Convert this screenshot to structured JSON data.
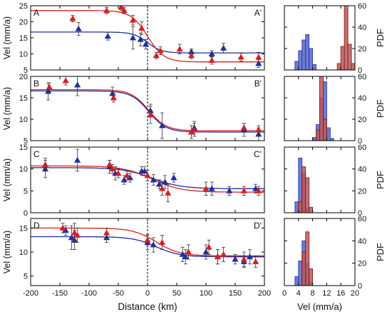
{
  "chart_data": [
    {
      "type": "scatter",
      "panel_label": "A",
      "panel_label_end": "A'",
      "ylabel": "Vel (mm/a)",
      "xlim": [
        -200,
        200
      ],
      "ylim": [
        5,
        25
      ],
      "yticks": [
        5,
        10,
        15,
        20,
        25
      ],
      "series": [
        {
          "color": "#1f2f9e",
          "marker": "triangle",
          "points": [
            [
              -118,
              17.8,
              2
            ],
            [
              -68,
              15.5,
              1.2
            ],
            [
              -25,
              15,
              3.5
            ],
            [
              -12,
              14.5,
              2
            ],
            [
              -3,
              13,
              1.5
            ],
            [
              75,
              10.7,
              0.8
            ],
            [
              110,
              10,
              1
            ],
            [
              130,
              11.8,
              1.5
            ],
            [
              190,
              7,
              1.2
            ]
          ],
          "curve": {
            "left": 16.8,
            "right": 10.3,
            "x0": 0,
            "w": 12
          }
        },
        {
          "color": "#d42020",
          "marker": "triangle",
          "points": [
            [
              -128,
              21,
              1
            ],
            [
              -70,
              23.5,
              1
            ],
            [
              -45,
              24.5,
              1
            ],
            [
              -40,
              23.5,
              1
            ],
            [
              -25,
              20.5,
              1.5
            ],
            [
              -10,
              18,
              2
            ],
            [
              15,
              9.5,
              1
            ],
            [
              22,
              11,
              1.2
            ],
            [
              55,
              11.5,
              1.5
            ],
            [
              75,
              9.5,
              1
            ],
            [
              110,
              8,
              1.2
            ],
            [
              160,
              9,
              1.2
            ],
            [
              190,
              9,
              1.5
            ]
          ],
          "curve": {
            "left": 23.5,
            "right": 7.5,
            "x0": 0,
            "w": 14
          }
        }
      ]
    },
    {
      "type": "scatter",
      "panel_label": "B",
      "panel_label_end": "B'",
      "ylabel": "Vel (mm/a)",
      "xlim": [
        -200,
        200
      ],
      "ylim": [
        5,
        20
      ],
      "yticks": [
        5,
        10,
        15,
        20
      ],
      "series": [
        {
          "color": "#1f2f9e",
          "marker": "triangle",
          "points": [
            [
              -170,
              16.5,
              2
            ],
            [
              -120,
              18,
              2.5
            ],
            [
              -60,
              16,
              1.5
            ],
            [
              5,
              12,
              1.5
            ],
            [
              25,
              8.5,
              3
            ],
            [
              80,
              8,
              1.5
            ],
            [
              165,
              7.5,
              1.5
            ],
            [
              190,
              6.5,
              1.5
            ]
          ],
          "curve": {
            "left": 16.6,
            "right": 7.0,
            "x0": 2,
            "w": 15
          }
        },
        {
          "color": "#d42020",
          "marker": "triangle",
          "points": [
            [
              -168,
              17.5,
              1
            ],
            [
              -140,
              19,
              1
            ],
            [
              -58,
              15,
              1
            ],
            [
              5,
              11,
              2
            ],
            [
              75,
              7,
              1.5
            ],
            [
              80,
              7.5,
              1.5
            ],
            [
              165,
              8,
              1
            ],
            [
              190,
              7.5,
              1
            ]
          ],
          "curve": {
            "left": 16.9,
            "right": 7.3,
            "x0": 2,
            "w": 15
          }
        }
      ]
    },
    {
      "type": "scatter",
      "panel_label": "C",
      "panel_label_end": "C'",
      "ylabel": "Vel (mm/a)",
      "xlim": [
        -200,
        200
      ],
      "ylim": [
        0,
        15
      ],
      "yticks": [
        0,
        5,
        10,
        15
      ],
      "series": [
        {
          "color": "#1f2f9e",
          "marker": "triangle",
          "points": [
            [
              -175,
              10,
              2
            ],
            [
              -120,
              12,
              2.5
            ],
            [
              -65,
              10.5,
              1.5
            ],
            [
              -55,
              9,
              1.5
            ],
            [
              -40,
              7.5,
              1
            ],
            [
              -30,
              8,
              1
            ],
            [
              -10,
              9.5,
              1
            ],
            [
              -5,
              9.5,
              1
            ],
            [
              10,
              7.5,
              1.2
            ],
            [
              20,
              6.5,
              1
            ],
            [
              30,
              7,
              1.5
            ],
            [
              45,
              8,
              1
            ],
            [
              110,
              5.5,
              1.5
            ],
            [
              140,
              5,
              1
            ],
            [
              185,
              5.5,
              1
            ]
          ],
          "curve": {
            "left": 10.3,
            "right": 5.5,
            "x0": 8,
            "w": 25
          }
        },
        {
          "color": "#d42020",
          "marker": "triangle",
          "points": [
            [
              -175,
              11,
              1.5
            ],
            [
              -65,
              11,
              1
            ],
            [
              -60,
              10,
              1
            ],
            [
              -50,
              9,
              1
            ],
            [
              -35,
              8.5,
              1
            ],
            [
              0,
              8.5,
              1.2
            ],
            [
              25,
              5.5,
              1.5
            ],
            [
              35,
              4.5,
              2
            ],
            [
              100,
              5.5,
              1.5
            ],
            [
              165,
              5,
              1
            ],
            [
              190,
              5,
              1
            ]
          ],
          "curve": {
            "left": 10.7,
            "right": 4.7,
            "x0": 8,
            "w": 25
          }
        }
      ]
    },
    {
      "type": "scatter",
      "panel_label": "D",
      "panel_label_end": "D'",
      "ylabel": "Vel (mm/a)",
      "xlim": [
        -200,
        200
      ],
      "ylim": [
        3,
        17
      ],
      "yticks": [
        5,
        10,
        15
      ],
      "series": [
        {
          "color": "#1f2f9e",
          "marker": "triangle",
          "points": [
            [
              -140,
              14.5,
              1
            ],
            [
              -130,
              13,
              2.5
            ],
            [
              -125,
              12.5,
              2
            ],
            [
              -70,
              13,
              1
            ],
            [
              0,
              12,
              1.5
            ],
            [
              10,
              11.5,
              1.5
            ],
            [
              60,
              9.5,
              1.5
            ],
            [
              65,
              9,
              1.5
            ],
            [
              100,
              10,
              1.5
            ],
            [
              120,
              9,
              1.5
            ],
            [
              150,
              8.5,
              1
            ],
            [
              165,
              8,
              1.2
            ],
            [
              175,
              9,
              1.5
            ]
          ],
          "curve": {
            "left": 13.2,
            "right": 9.0,
            "x0": 15,
            "w": 20
          }
        },
        {
          "color": "#d42020",
          "marker": "triangle",
          "points": [
            [
              -145,
              15,
              1
            ],
            [
              -125,
              14,
              2
            ],
            [
              -120,
              13.5,
              1.5
            ],
            [
              -70,
              14,
              1
            ],
            [
              0,
              12.5,
              1.2
            ],
            [
              25,
              12,
              1.5
            ],
            [
              70,
              10,
              1.5
            ],
            [
              105,
              11,
              1.5
            ],
            [
              120,
              9,
              1.5
            ],
            [
              130,
              9.5,
              1.5
            ],
            [
              165,
              8.5,
              1.5
            ],
            [
              185,
              8,
              1.2
            ]
          ],
          "curve": {
            "left": 15.0,
            "right": 9.2,
            "x0": 15,
            "w": 20
          }
        }
      ]
    },
    {
      "type": "histogram",
      "ylabel": "PDF",
      "xlim": [
        0,
        20
      ],
      "ylim": [
        0,
        60
      ],
      "yticks": [
        0,
        20,
        40,
        60
      ],
      "bin_width": 1,
      "series": [
        {
          "color": "#2a3aa8",
          "fill": "#5566c8",
          "bins": [
            [
              3,
              8
            ],
            [
              4,
              18
            ],
            [
              5,
              28
            ],
            [
              6,
              33
            ],
            [
              7,
              20
            ],
            [
              8,
              5
            ]
          ]
        },
        {
          "color": "#8a1a1a",
          "fill": "#b85a5a",
          "bins": [
            [
              15,
              6
            ],
            [
              16,
              22
            ],
            [
              17,
              60
            ],
            [
              18,
              24
            ],
            [
              19,
              6
            ]
          ]
        }
      ]
    },
    {
      "type": "histogram",
      "ylabel": "PDF",
      "xlim": [
        0,
        20
      ],
      "ylim": [
        0,
        60
      ],
      "yticks": [
        0,
        20,
        40,
        60
      ],
      "bin_width": 1,
      "series": [
        {
          "color": "#2a3aa8",
          "fill": "#5566c8",
          "bins": [
            [
              8,
              3
            ],
            [
              9,
              15
            ],
            [
              10,
              40
            ],
            [
              11,
              55
            ],
            [
              12,
              12
            ],
            [
              13,
              2
            ]
          ]
        },
        {
          "color": "#8a1a1a",
          "fill": "#b85a5a",
          "bins": [
            [
              9,
              10
            ],
            [
              10,
              60
            ],
            [
              11,
              20
            ]
          ]
        }
      ]
    },
    {
      "type": "histogram",
      "ylabel": "PDF",
      "xlim": [
        0,
        20
      ],
      "ylim": [
        0,
        60
      ],
      "yticks": [
        0,
        20,
        40,
        60
      ],
      "bin_width": 1,
      "series": [
        {
          "color": "#2a3aa8",
          "fill": "#5566c8",
          "bins": [
            [
              3,
              10
            ],
            [
              4,
              50
            ],
            [
              5,
              36
            ],
            [
              6,
              4
            ]
          ]
        },
        {
          "color": "#8a1a1a",
          "fill": "#b85a5a",
          "bins": [
            [
              4,
              10
            ],
            [
              5,
              42
            ],
            [
              6,
              32
            ],
            [
              7,
              5
            ]
          ]
        }
      ]
    },
    {
      "type": "histogram",
      "ylabel": "PDF",
      "xlim": [
        0,
        20
      ],
      "ylim": [
        0,
        60
      ],
      "yticks": [
        0,
        20,
        40,
        60
      ],
      "xticks": [
        0,
        4,
        8,
        12,
        16,
        20
      ],
      "xlabel": "Vel (mm/a)",
      "bin_width": 1,
      "series": [
        {
          "color": "#2a3aa8",
          "fill": "#5566c8",
          "bins": [
            [
              3,
              8
            ],
            [
              4,
              22
            ],
            [
              5,
              40
            ],
            [
              6,
              20
            ],
            [
              7,
              3
            ]
          ]
        },
        {
          "color": "#8a1a1a",
          "fill": "#b85a5a",
          "bins": [
            [
              5,
              30
            ],
            [
              6,
              48
            ],
            [
              7,
              15
            ]
          ]
        }
      ]
    }
  ],
  "shared_xaxis": {
    "xlabel": "Distance (km)",
    "xticks": [
      -200,
      -150,
      -100,
      -50,
      0,
      50,
      100,
      150,
      200
    ]
  }
}
